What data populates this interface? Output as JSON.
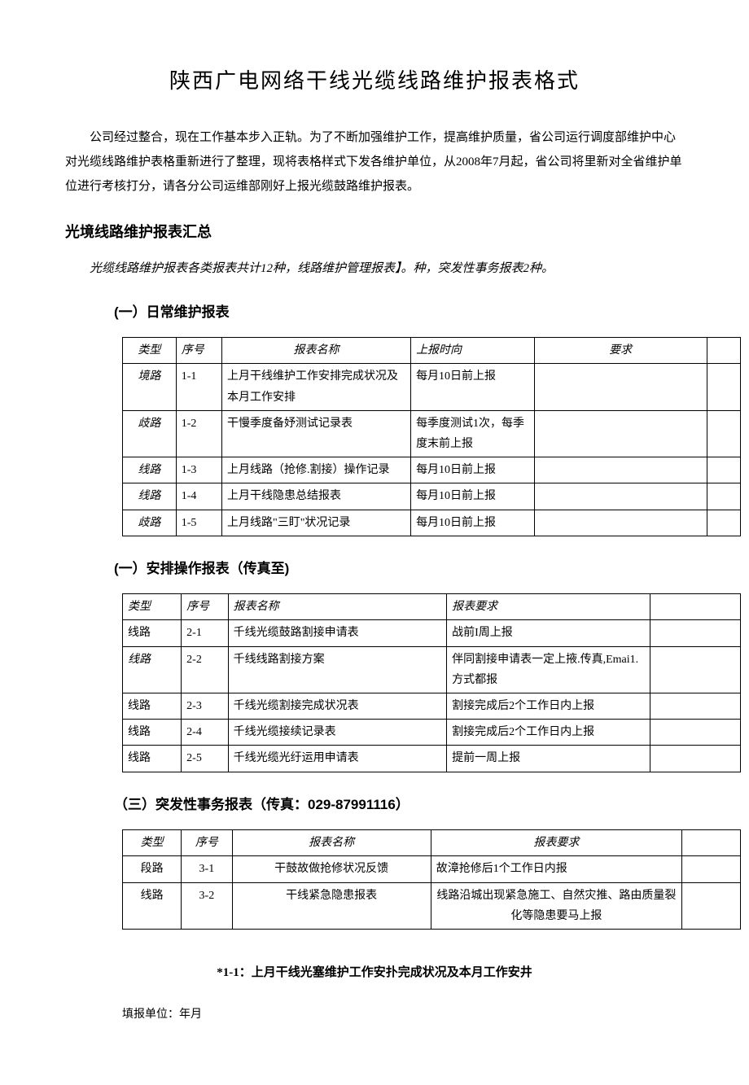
{
  "title": "陕西广电网络干线光缆线路维护报表格式",
  "intro": "公司经过整合，现在工作基本步入正轨。为了不断加强维护工作，提高维护质量，省公司运行调度部维护中心对光缆线路维护表格重新进行了整理，现将表格样式下发各维护单位，从2008年7月起，省公司将里新对全省维护单位进行考核打分，请各分公司运维部刚好上报光缆鼓路维护报表。",
  "summary_heading": "光境线路维护报表汇总",
  "summary_text": "光缆线路维护报表各类报表共计12种，线路维护管理报表】。种，突发性事务报表2种。",
  "section1": {
    "heading": "(一）日常维护报表",
    "headers": {
      "c1": "类型",
      "c2": "序号",
      "c3": "报表名称",
      "c4": "上报时向",
      "c5": "要求",
      "c6": ""
    },
    "rows": [
      {
        "c1": "境路",
        "c2": "1-1",
        "c3": "上月干线维护工作安排完成状况及本月工作安排",
        "c4": "每月10日前上报",
        "c5": "",
        "c6": ""
      },
      {
        "c1": "歧路",
        "c2": "1-2",
        "c3": "干慢季度备妤测试记录表",
        "c4": "每季度测试1次，每季度末前上报",
        "c5": "",
        "c6": ""
      },
      {
        "c1": "线路",
        "c2": "1-3",
        "c3": "上月线路（抢修.割接）操作记录",
        "c4": "每月10日前上报",
        "c5": "",
        "c6": ""
      },
      {
        "c1": "线路",
        "c2": "1-4",
        "c3": "上月干线隐患总结报表",
        "c4": "每月10日前上报",
        "c5": "",
        "c6": ""
      },
      {
        "c1": "歧路",
        "c2": "1-5",
        "c3": "上月线路\"三盯\"状况记录",
        "c4": "每月10日前上报",
        "c5": "",
        "c6": ""
      }
    ]
  },
  "section2": {
    "heading": "(一）安排操作报表（传真至)",
    "headers": {
      "c1": "类型",
      "c2": "序号",
      "c3": "报表名称",
      "c4": "报表要求",
      "c5": ""
    },
    "rows": [
      {
        "c1": "线路",
        "c2": "2-1",
        "c3": "千线光缆鼓路割接申请表",
        "c4": "战前I周上报",
        "c5": ""
      },
      {
        "c1": "线路",
        "c2": "2-2",
        "c3": "千线线路割接方案",
        "c4": "伴同割接申请表一定上掖.传真,Emai1.方式都报",
        "c5": ""
      },
      {
        "c1": "线路",
        "c2": "2-3",
        "c3": "千线光缆割接完成状况表",
        "c4": "割接完成后2个工作日内上报",
        "c5": ""
      },
      {
        "c1": "线路",
        "c2": "2-4",
        "c3": "千线光缆接续记录表",
        "c4": "割接完成后2个工作日内上报",
        "c5": ""
      },
      {
        "c1": "线路",
        "c2": "2-5",
        "c3": "千线光缆光纡运用申请表",
        "c4": "提前一周上报",
        "c5": ""
      }
    ]
  },
  "section3": {
    "heading": "（三）突发性事务报表（传真：029-87991116）",
    "headers": {
      "c1": "类型",
      "c2": "序号",
      "c3": "报表名称",
      "c4": "报表要求",
      "c5": ""
    },
    "rows": [
      {
        "c1": "段路",
        "c2": "3-1",
        "c3": "干鼓故做抢修状况反馈",
        "c4": "故漳抢修后1个工作日内报",
        "c5": ""
      },
      {
        "c1": "线路",
        "c2": "3-2",
        "c3": "干线紧急隐患报表",
        "c4": "线路沿城出现紧急施工、自然灾推、路由质量裂化等隐患要马上报",
        "c5": ""
      }
    ]
  },
  "form": {
    "title": "*1-1：上月干线光塞维护工作安扑完成状况及本月工作安井",
    "unit_label": "填报单位：年月"
  }
}
